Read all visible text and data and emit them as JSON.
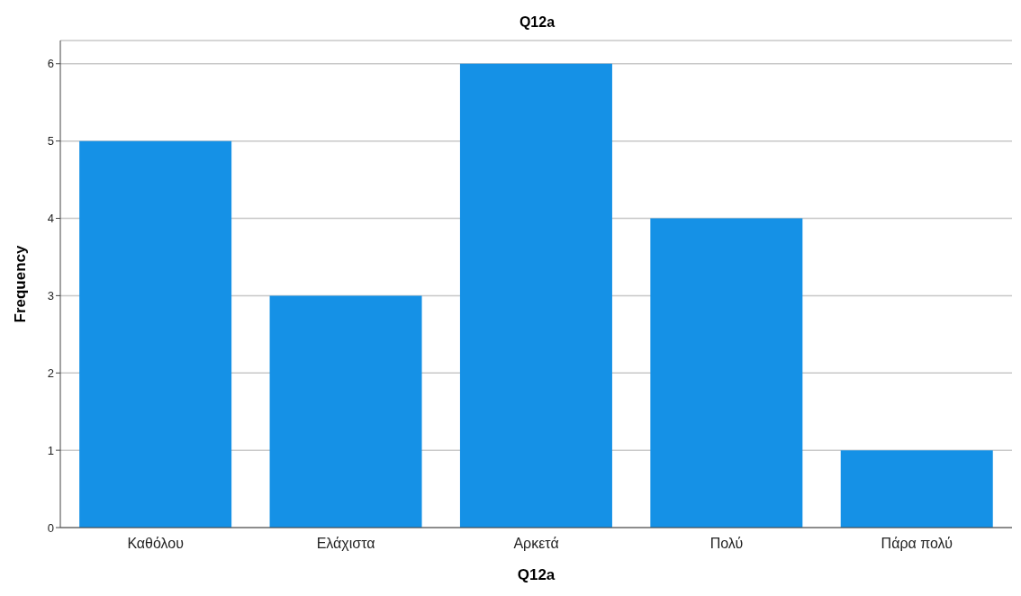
{
  "chart_data": {
    "type": "bar",
    "title": "Q12a",
    "xlabel": "Q12a",
    "ylabel": "Frequency",
    "categories": [
      "Καθόλου",
      "Ελάχιστα",
      "Αρκετά",
      "Πολύ",
      "Πάρα πολύ"
    ],
    "values": [
      5,
      3,
      6,
      4,
      1
    ],
    "color": "#1591e6",
    "ylim": [
      0,
      6.3
    ],
    "yticks": [
      0,
      1,
      2,
      3,
      4,
      5,
      6
    ],
    "grid": "y",
    "legend": false
  }
}
